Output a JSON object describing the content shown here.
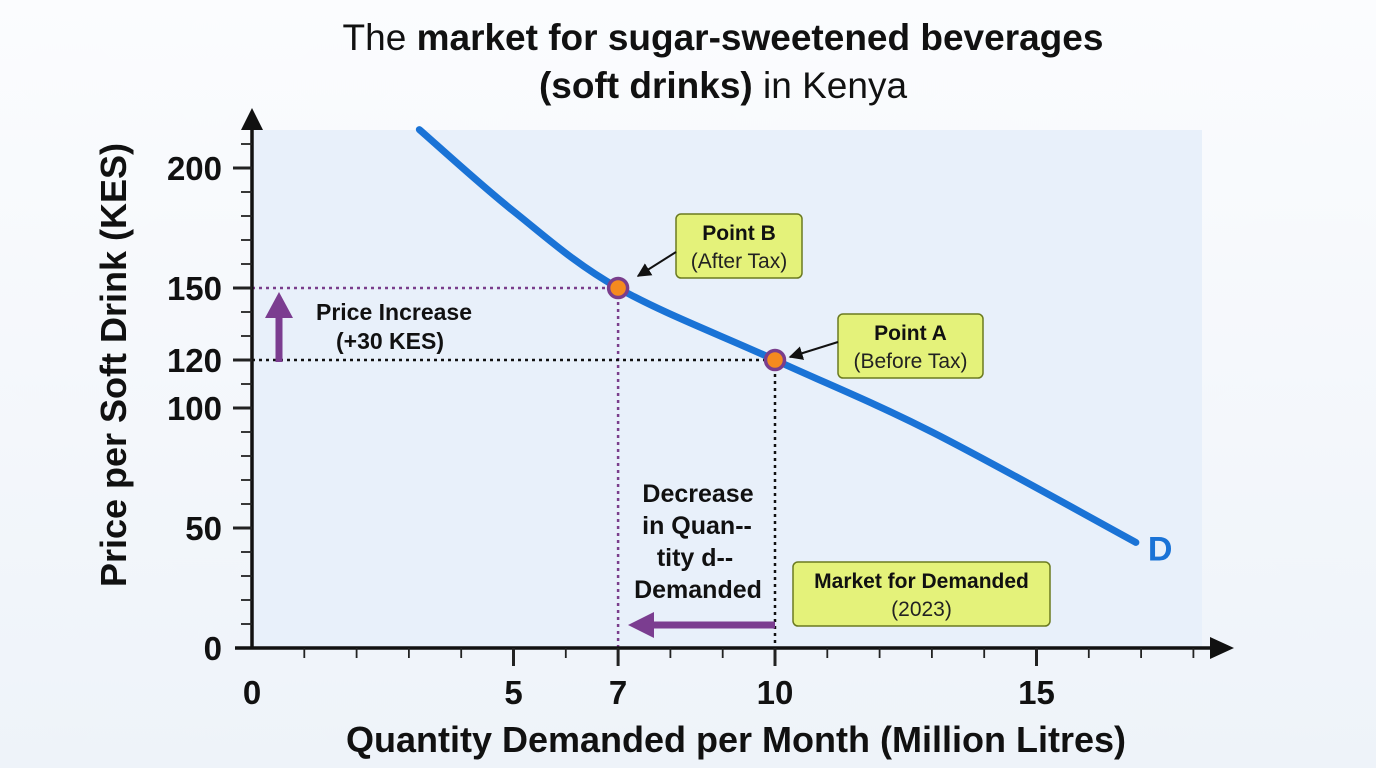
{
  "title": {
    "line1_pre": "The ",
    "line1_bold": "market for sugar-sweetened beverages",
    "line2_bold": "(soft drinks)",
    "line2_post": " in Kenya"
  },
  "chart_data": {
    "type": "line",
    "xlabel": "Quantity Demanded per Month (Million Litres)",
    "ylabel": "Price per Soft Drink (KES)",
    "xlim": [
      0,
      18.5
    ],
    "ylim": [
      0,
      215
    ],
    "x_ticks": [
      0,
      5,
      7,
      10,
      15
    ],
    "y_ticks": [
      0,
      50,
      100,
      120,
      150,
      200
    ],
    "grid": false,
    "series": [
      {
        "name": "D",
        "color": "#1a73d6",
        "x": [
          3.2,
          5,
          7,
          10,
          13,
          16.9
        ],
        "y": [
          216,
          182,
          150,
          120,
          90,
          44
        ]
      }
    ],
    "points": [
      {
        "name": "Point B",
        "sub": "(After Tax)",
        "x": 7,
        "y": 150
      },
      {
        "name": "Point A",
        "sub": "(Before Tax)",
        "x": 10,
        "y": 120
      }
    ],
    "annotations": {
      "price_increase": [
        "Price Increase",
        "(+30 KES)"
      ],
      "quantity_decrease": [
        "Decrease",
        "in Quan--",
        "tity d--",
        "Demanded"
      ],
      "market_box": [
        "Market for Demanded",
        "(2023)"
      ]
    },
    "colors": {
      "curve": "#1a73d6",
      "guide_purple": "#7a3e8c",
      "arrow_purple": "#7b3d90",
      "callout_fill": "#e4f27a",
      "point_fill": "#f58a1f",
      "plot_bg": "#e8f0fa"
    }
  }
}
